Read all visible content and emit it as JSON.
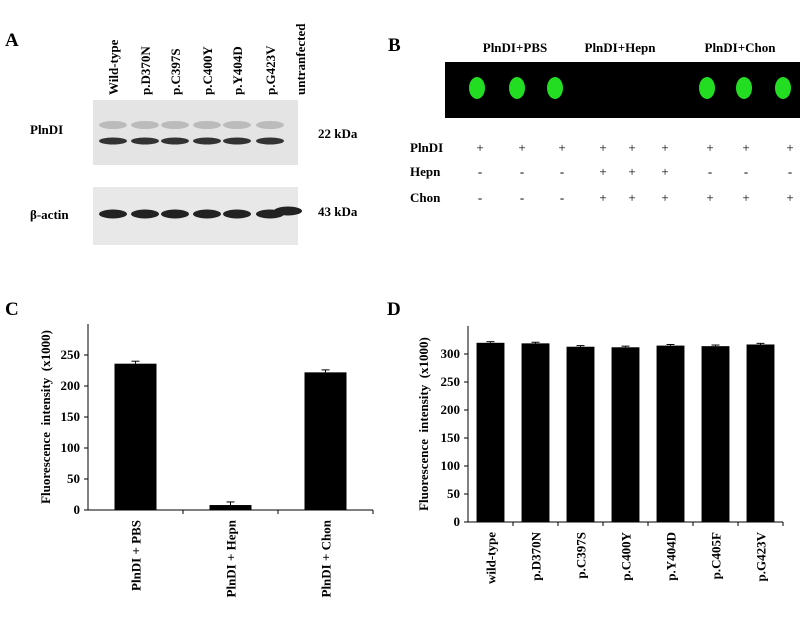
{
  "panel_a": {
    "label": "A",
    "lanes": [
      "Wild-type",
      "p.D370N",
      "p.C397S",
      "p.C400Y",
      "p.Y404D",
      "p.G423V",
      "untranfected"
    ],
    "rows": [
      {
        "name": "PlnDI",
        "size": "22 kDa"
      },
      {
        "name": "β-actin",
        "size": "43 kDa"
      }
    ]
  },
  "panel_b": {
    "label": "B",
    "groups": [
      "PlnDI+PBS",
      "PlnDI+Hepn",
      "PlnDI+Chon"
    ],
    "table": [
      {
        "name": "PlnDI",
        "cells": [
          "+",
          "+",
          "+",
          "+",
          "+",
          "+",
          "+",
          "+",
          "+"
        ]
      },
      {
        "name": "Hepn",
        "cells": [
          "-",
          "-",
          "-",
          "+",
          "+",
          "+",
          "-",
          "-",
          "-"
        ]
      },
      {
        "name": "Chon",
        "cells": [
          "-",
          "-",
          "-",
          "+",
          "+",
          "+",
          "+",
          "+",
          "+"
        ]
      }
    ]
  },
  "chart_data": [
    {
      "type": "bar",
      "panel": "C",
      "y_label": "Fluorescence  intensity  (x1000)",
      "color": "#000000",
      "categories": [
        "PlnDI + PBS",
        "PlnDI + Hepn",
        "PlnDI + Chon"
      ],
      "values": [
        236,
        8,
        222
      ],
      "errors": [
        4,
        5,
        4
      ],
      "ylim": [
        0,
        300
      ],
      "yticks": [
        0,
        50,
        100,
        150,
        200,
        250
      ]
    },
    {
      "type": "bar",
      "panel": "D",
      "y_label": "Fluorescence  intensity  (x1000)",
      "color": "#000000",
      "categories": [
        "wild-type",
        "p.D370N",
        "p.C397S",
        "p.C400Y",
        "p.Y404D",
        "p.C405F",
        "p.G423V"
      ],
      "values": [
        320,
        319,
        313,
        312,
        315,
        314,
        317
      ],
      "errors": [
        2,
        2,
        2,
        2,
        2,
        2,
        2
      ],
      "ylim": [
        0,
        350
      ],
      "yticks": [
        0,
        50,
        100,
        150,
        200,
        250,
        300
      ]
    }
  ]
}
